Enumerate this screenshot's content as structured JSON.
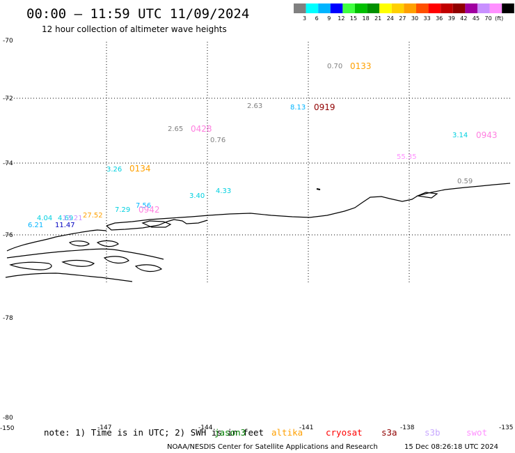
{
  "header": {
    "title": "00:00 – 11:59 UTC 11/09/2024",
    "subtitle": "12 hour collection of altimeter wave heights"
  },
  "colorbar": {
    "colors": [
      "#808080",
      "#00ffff",
      "#00b4ff",
      "#0000ff",
      "#40ff40",
      "#00c000",
      "#009000",
      "#ffff00",
      "#ffd000",
      "#ffa000",
      "#ff5000",
      "#ff0000",
      "#c00000",
      "#900000",
      "#a000a0",
      "#c890ff",
      "#ff90ff",
      "#000000"
    ],
    "labels": [
      "3",
      "6",
      "9",
      "12",
      "15",
      "18",
      "21",
      "24",
      "27",
      "30",
      "33",
      "36",
      "39",
      "42",
      "45",
      "70",
      "(ft)"
    ]
  },
  "lat_labels": [
    "-70",
    "-72",
    "-74",
    "-76",
    "-78",
    "-78",
    "-80"
  ],
  "lon_labels": [
    "-150",
    "-147",
    "-144",
    "-141",
    "-138",
    "-135"
  ],
  "observations": [
    {
      "text": "0.70",
      "color": "#808080"
    },
    {
      "text": "0133",
      "color": "#ffa000"
    },
    {
      "text": "2.63",
      "color": "#808080"
    },
    {
      "text": "8.13",
      "color": "#00b4ff"
    },
    {
      "text": "0919",
      "color": "#900000"
    },
    {
      "text": "2.65",
      "color": "#808080"
    },
    {
      "text": "0428",
      "color": "#ff80e0"
    },
    {
      "text": "0.76",
      "color": "#808080"
    },
    {
      "text": "3.14",
      "color": "#00d0e0"
    },
    {
      "text": "0943",
      "color": "#ff80e0"
    },
    {
      "text": "55.35",
      "color": "#ff90ff"
    },
    {
      "text": "3.26",
      "color": "#00d0e0"
    },
    {
      "text": "0134",
      "color": "#ffa000"
    },
    {
      "text": "0.59",
      "color": "#808080"
    },
    {
      "text": "3.40",
      "color": "#00d0e0"
    },
    {
      "text": "4.33",
      "color": "#00d0e0"
    },
    {
      "text": "7.56",
      "color": "#00b4ff"
    },
    {
      "text": "7.29",
      "color": "#00d0e0"
    },
    {
      "text": "0942",
      "color": "#ff80e0"
    },
    {
      "text": "4.04",
      "color": "#00d0e0"
    },
    {
      "text": "4.69",
      "color": "#00d0e0"
    },
    {
      "text": "13.21",
      "color": "#c890ff"
    },
    {
      "text": "27.52",
      "color": "#ffa000"
    },
    {
      "text": "6.21",
      "color": "#00b4ff"
    },
    {
      "text": "11.47",
      "color": "#0000c0"
    }
  ],
  "footer": {
    "note": "note: 1) Time is in UTC; 2) SWH is in feet",
    "legend": [
      {
        "text": "jason3",
        "color": "#008000"
      },
      {
        "text": "altika",
        "color": "#ffa000"
      },
      {
        "text": "cryosat",
        "color": "#ff0000"
      },
      {
        "text": "s3a",
        "color": "#900000"
      },
      {
        "text": "s3b",
        "color": "#c8a8ff"
      },
      {
        "text": "swot",
        "color": "#ff90ff"
      }
    ],
    "credit": "NOAA/NESDIS Center for Satellite Applications and Research",
    "timestamp": "15 Dec 08:26:18 UTC 2024"
  }
}
